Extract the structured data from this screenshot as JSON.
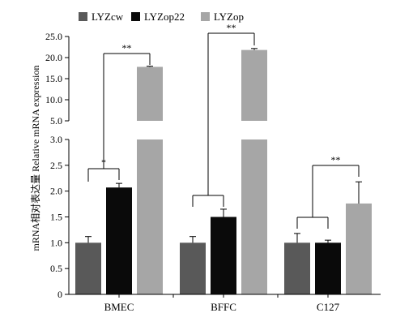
{
  "chart_data": {
    "type": "bar",
    "title": "",
    "xlabel": "",
    "ylabel": "mRNA相对表达量 Relative mRNA expression",
    "axis_break": true,
    "ylim_lower": [
      0,
      3.0
    ],
    "ylim_upper": [
      5.0,
      25.0
    ],
    "yticks_lower": [
      "0",
      "0.5",
      "1.0",
      "1.5",
      "2.0",
      "2.5",
      "3.0"
    ],
    "yticks_upper": [
      "5.0",
      "10.0",
      "15.0",
      "20.0",
      "25.0"
    ],
    "categories": [
      "BMEC",
      "BFFC",
      "C127"
    ],
    "legend_position": "top",
    "series": [
      {
        "name": "LYZcw",
        "values": [
          1.0,
          1.0,
          1.0
        ],
        "errors": [
          0.12,
          0.12,
          0.18
        ],
        "color": "#595959"
      },
      {
        "name": "LYZop22",
        "values": [
          2.07,
          1.5,
          1.0
        ],
        "errors": [
          0.08,
          0.15,
          0.05
        ],
        "color": "#0a0a0a"
      },
      {
        "name": "LYZop",
        "values": [
          17.8,
          21.8,
          1.76
        ],
        "errors": [
          0.15,
          0.35,
          0.42
        ],
        "color": "#a6a6a6"
      }
    ],
    "annotations": [
      {
        "category": "BMEC",
        "type": "pair",
        "from_series": 0,
        "to_series": 1,
        "label": "*"
      },
      {
        "category": "BMEC",
        "type": "group_to_series",
        "from_series": [
          0,
          1
        ],
        "to_series": 2,
        "label": "**"
      },
      {
        "category": "BFFC",
        "type": "group_to_series",
        "from_series": [
          0,
          1
        ],
        "to_series": 2,
        "label": "**"
      },
      {
        "category": "C127",
        "type": "group_to_series",
        "from_series": [
          0,
          1
        ],
        "to_series": 2,
        "label": "**"
      }
    ]
  }
}
